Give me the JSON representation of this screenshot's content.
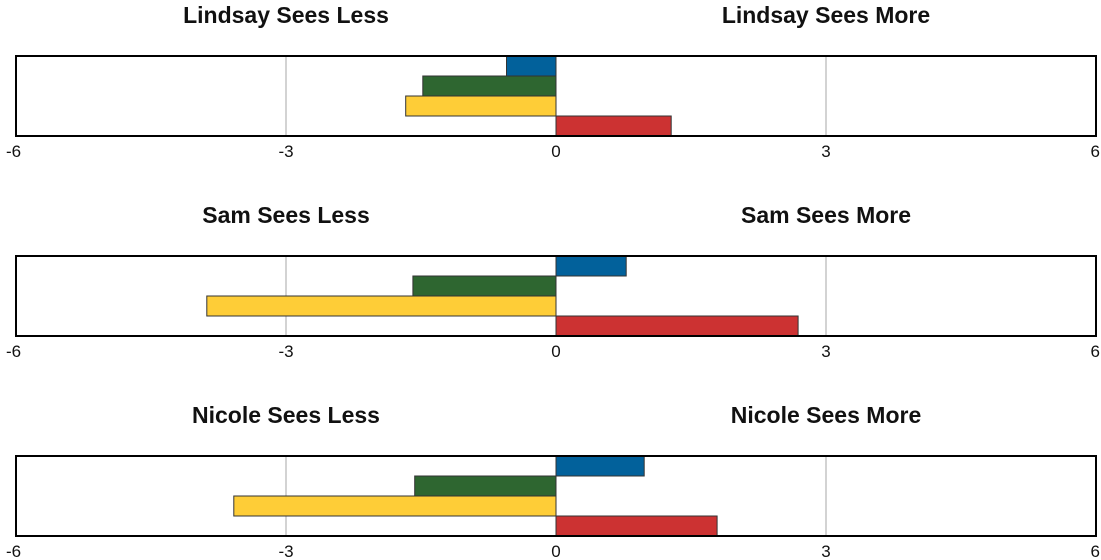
{
  "chart_data": [
    {
      "type": "bar",
      "orientation": "horizontal",
      "left_title": "Lindsay Sees Less",
      "right_title": "Lindsay Sees More",
      "xlim": [
        -6,
        6
      ],
      "xticks": [
        "-6",
        "-3",
        "0",
        "3",
        "6"
      ],
      "grid": true,
      "series": [
        {
          "color": "#02619b",
          "value": -0.55
        },
        {
          "color": "#2e6630",
          "value": -1.48
        },
        {
          "color": "#fecd37",
          "value": -1.67
        },
        {
          "color": "#cc3232",
          "value": 1.28
        }
      ]
    },
    {
      "type": "bar",
      "orientation": "horizontal",
      "left_title": "Sam Sees Less",
      "right_title": "Sam Sees More",
      "xlim": [
        -6,
        6
      ],
      "xticks": [
        "-6",
        "-3",
        "0",
        "3",
        "6"
      ],
      "grid": true,
      "series": [
        {
          "color": "#02619b",
          "value": 0.78
        },
        {
          "color": "#2e6630",
          "value": -1.59
        },
        {
          "color": "#fecd37",
          "value": -3.88
        },
        {
          "color": "#cc3232",
          "value": 2.69
        }
      ]
    },
    {
      "type": "bar",
      "orientation": "horizontal",
      "left_title": "Nicole Sees Less",
      "right_title": "Nicole Sees More",
      "xlim": [
        -6,
        6
      ],
      "xticks": [
        "-6",
        "-3",
        "0",
        "3",
        "6"
      ],
      "grid": true,
      "series": [
        {
          "color": "#02619b",
          "value": 0.98
        },
        {
          "color": "#2e6630",
          "value": -1.57
        },
        {
          "color": "#fecd37",
          "value": -3.58
        },
        {
          "color": "#cc3232",
          "value": 1.79
        }
      ]
    }
  ]
}
